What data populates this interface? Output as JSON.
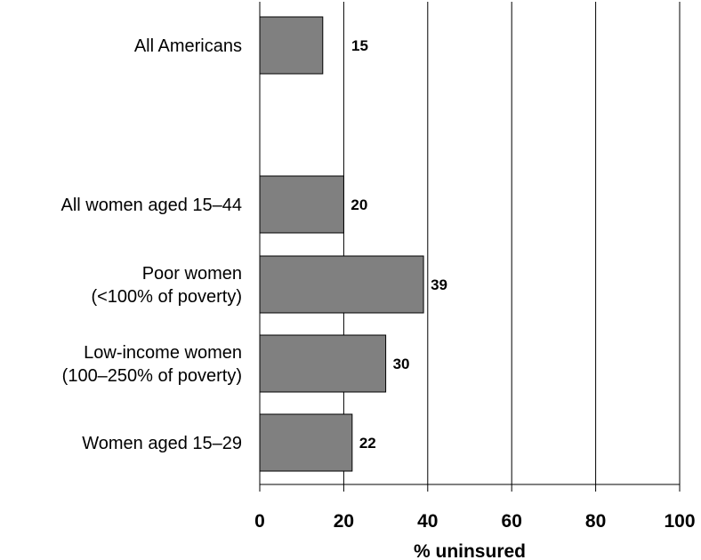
{
  "chart_data": {
    "type": "bar",
    "orientation": "horizontal",
    "categories": [
      [
        "All Americans"
      ],
      [
        "All women aged 15–44"
      ],
      [
        "Poor women",
        "(<100% of poverty)"
      ],
      [
        "Low-income women",
        "(100–250% of poverty)"
      ],
      [
        "Women aged 15–29"
      ]
    ],
    "values": [
      15,
      20,
      39,
      30,
      22
    ],
    "data_labels": [
      "15",
      "20",
      "39",
      "30",
      "22"
    ],
    "xlabel": "% uninsured",
    "xlim": [
      0,
      100
    ],
    "xticks": [
      0,
      20,
      40,
      60,
      80,
      100
    ],
    "grid": "vertical",
    "bar_color": "#808080",
    "bar_edge_color": "#000000"
  }
}
